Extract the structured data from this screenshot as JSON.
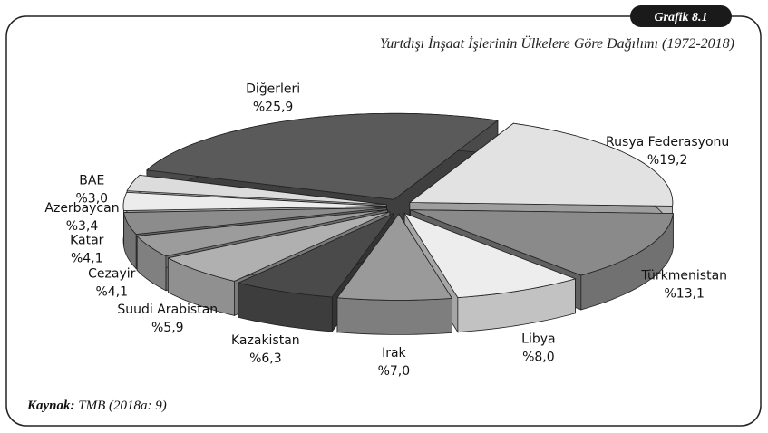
{
  "badge": "Grafik 8.1",
  "chart_data": {
    "type": "pie",
    "title": "Yurtdışı İnşaat İşlerinin Ülkelere Göre Dağılımı (1972-2018)",
    "categories": [
      "Diğerleri",
      "Rusya Federasyonu",
      "Türkmenistan",
      "Libya",
      "Irak",
      "Kazakistan",
      "Suudi Arabistan",
      "Cezayir",
      "Katar",
      "Azerbaycan",
      "BAE"
    ],
    "values": [
      25.9,
      19.2,
      13.1,
      8.0,
      7.0,
      6.3,
      5.9,
      4.1,
      4.1,
      3.4,
      3.0
    ],
    "value_labels": [
      "%25,9",
      "%19,2",
      "%13,1",
      "%8,0",
      "%7,0",
      "%6,3",
      "%5,9",
      "%4,1",
      "%4,1",
      "%3,4",
      "%3,0"
    ],
    "colors": [
      "#5a5a5a",
      "#e2e2e2",
      "#8a8a8a",
      "#ededed",
      "#9a9a9a",
      "#4a4a4a",
      "#b0b0b0",
      "#9c9c9c",
      "#8c8c8c",
      "#ececec",
      "#dcdcdc"
    ]
  },
  "source_label": "Kaynak:",
  "source": "TMB (2018a: 9)"
}
